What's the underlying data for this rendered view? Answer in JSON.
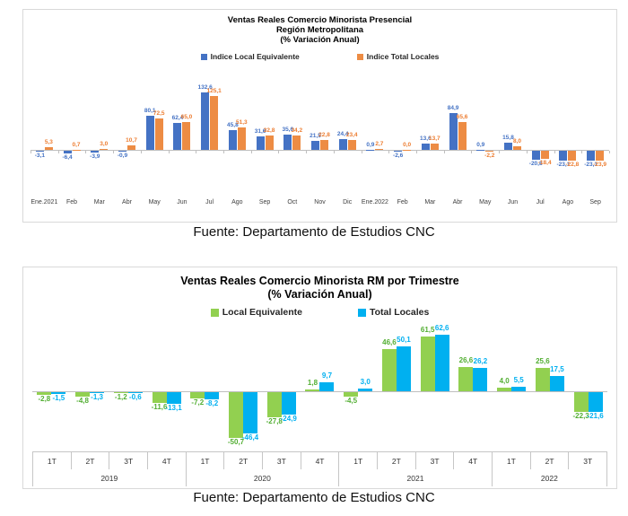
{
  "chart_data": [
    {
      "type": "bar",
      "title": "Ventas Reales Comercio Minorista Presencial",
      "subtitle": [
        "Región Metropolitana",
        "(% Variación Anual)"
      ],
      "legend_position": "top",
      "grid": false,
      "source": "Fuente: Departamento de Estudios CNC",
      "categories": [
        "Ene.2021",
        "Feb",
        "Mar",
        "Abr",
        "May",
        "Jun",
        "Jul",
        "Ago",
        "Sep",
        "Oct",
        "Nov",
        "Dic",
        "Ene.2022",
        "Feb",
        "Mar",
        "Abr",
        "May",
        "Jun",
        "Jul",
        "Ago",
        "Sep"
      ],
      "ylim": [
        -40,
        150
      ],
      "series": [
        {
          "name": "Indice Local Equivalente",
          "color": "#4472C4",
          "label_color": "#4472C4",
          "values": [
            -3.1,
            -6.4,
            -3.9,
            -0.9,
            80.1,
            62.4,
            132.6,
            45.8,
            31.6,
            35.6,
            21.5,
            24.4,
            0.9,
            -2.6,
            13.6,
            84.9,
            0.9,
            15.8,
            -20.8,
            -23.1,
            -23.1
          ]
        },
        {
          "name": "Indice Total Locales",
          "color": "#ED8C44",
          "label_color": "#ED7D31",
          "values": [
            5.3,
            0.7,
            3.0,
            10.7,
            72.5,
            65.0,
            125.1,
            51.3,
            32.8,
            34.2,
            22.8,
            23.4,
            2.7,
            0.0,
            13.7,
            65.6,
            -2.2,
            8.0,
            -18.4,
            -22.8,
            -23.9
          ]
        }
      ]
    },
    {
      "type": "bar",
      "title": "Ventas Reales Comercio Minorista RM por Trimestre",
      "subtitle": [
        "(% Variación Anual)"
      ],
      "legend_position": "top",
      "grid": false,
      "source": "Fuente: Departamento de Estudios CNC",
      "categories": [
        "1T",
        "2T",
        "3T",
        "4T",
        "1T",
        "2T",
        "3T",
        "4T",
        "1T",
        "2T",
        "3T",
        "4T",
        "1T",
        "2T",
        "3T"
      ],
      "year_groups": [
        {
          "label": "2019",
          "span": 4
        },
        {
          "label": "2020",
          "span": 4
        },
        {
          "label": "2021",
          "span": 4
        },
        {
          "label": "2022",
          "span": 3
        }
      ],
      "ylim": [
        -60,
        70
      ],
      "series": [
        {
          "name": "Local Equivalente",
          "color": "#92D050",
          "label_color": "#52AE32",
          "values": [
            -2.8,
            -4.8,
            -1.2,
            -11.6,
            -7.2,
            -50.7,
            -27.8,
            1.8,
            -4.5,
            46.6,
            61.5,
            26.6,
            4.0,
            25.6,
            -22.3
          ]
        },
        {
          "name": "Total Locales",
          "color": "#00B0F0",
          "label_color": "#00B0F0",
          "values": [
            -1.5,
            -1.3,
            -0.6,
            -13.1,
            -8.2,
            -46.4,
            -24.9,
            9.7,
            3.0,
            50.1,
            62.6,
            26.2,
            5.5,
            17.5,
            -21.6
          ]
        }
      ]
    }
  ]
}
